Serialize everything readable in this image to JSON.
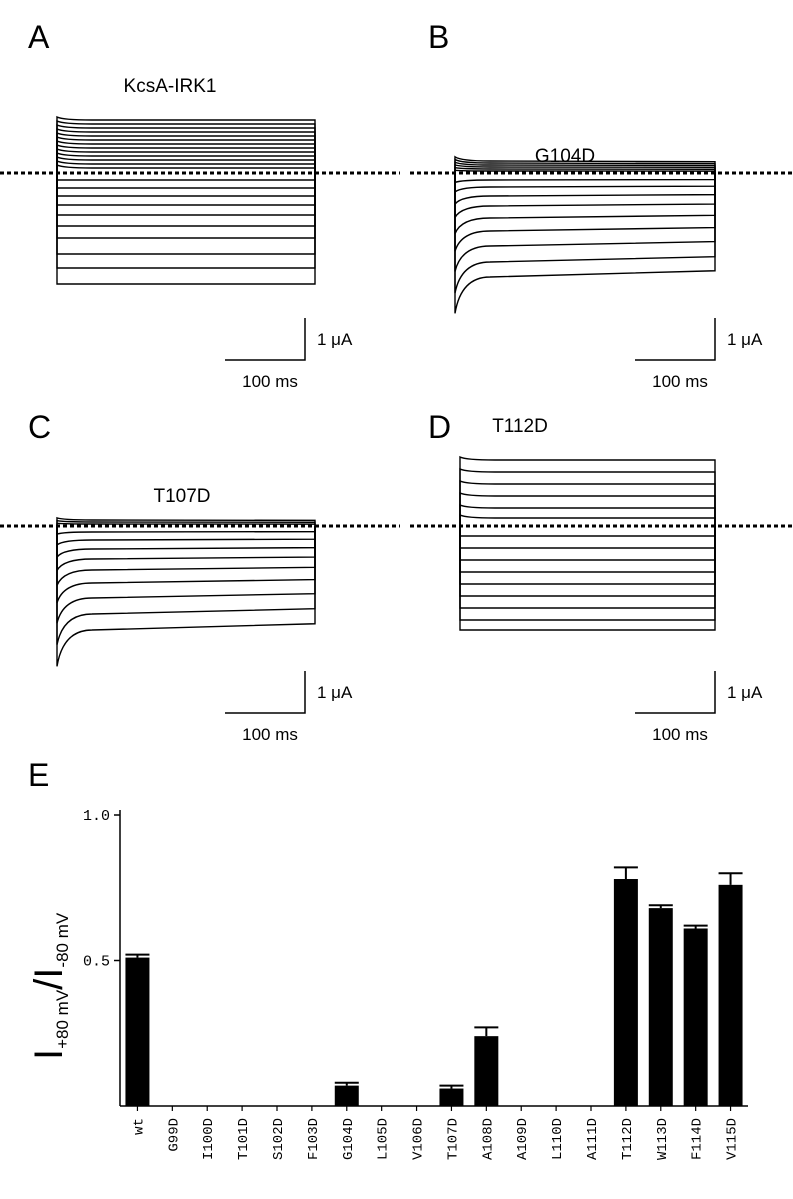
{
  "panels": [
    {
      "label": "A",
      "title": "KcsA-IRK1",
      "scale_current": "1 μA",
      "scale_time": "100 ms"
    },
    {
      "label": "B",
      "title": "G104D",
      "scale_current": "1 μA",
      "scale_time": "100 ms"
    },
    {
      "label": "C",
      "title": "T107D",
      "scale_current": "1 μA",
      "scale_time": "100 ms"
    },
    {
      "label": "D",
      "title": "T112D",
      "scale_current": "1 μA",
      "scale_time": "100 ms"
    }
  ],
  "chart_data": {
    "type": "bar",
    "panel_label": "E",
    "y_label": [
      "I",
      "+80 mV",
      "/I",
      "-80 mV"
    ],
    "categories": [
      "wt",
      "G99D",
      "I100D",
      "T101D",
      "S102D",
      "F103D",
      "G104D",
      "L105D",
      "V106D",
      "T107D",
      "A108D",
      "A109D",
      "L110D",
      "A111D",
      "T112D",
      "W113D",
      "F114D",
      "V115D"
    ],
    "values": [
      0.51,
      null,
      null,
      null,
      null,
      null,
      0.07,
      null,
      null,
      0.06,
      0.24,
      null,
      null,
      null,
      0.78,
      0.68,
      0.61,
      0.76
    ],
    "errors": [
      0.01,
      null,
      null,
      null,
      null,
      null,
      0.01,
      null,
      null,
      0.01,
      0.03,
      null,
      null,
      null,
      0.04,
      0.01,
      0.01,
      0.04
    ],
    "color": "#000000",
    "ylim": [
      0,
      1.0
    ],
    "yticks": [
      {
        "value": 0.5,
        "label": "0.5"
      },
      {
        "value": 1.0,
        "label": "1.0"
      }
    ]
  }
}
